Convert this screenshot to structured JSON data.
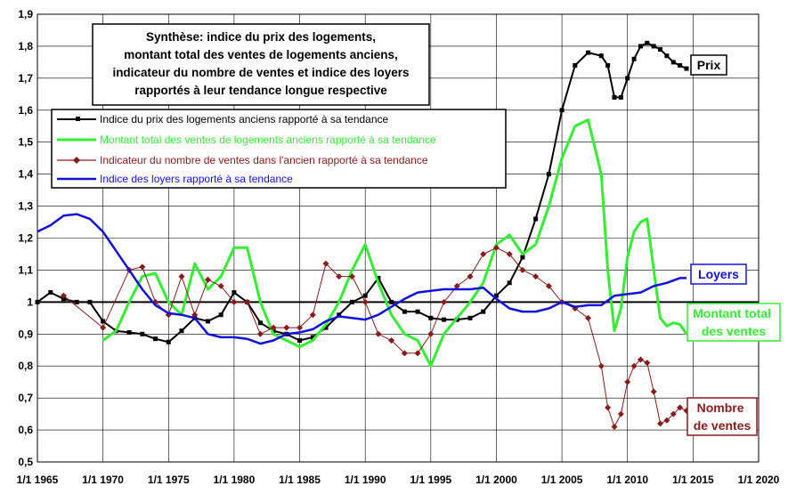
{
  "chart_data": {
    "type": "line",
    "title_lines": [
      "Synthèse: indice du prix des logements,",
      "montant total des ventes de logements anciens,",
      "indicateur du nombre de ventes et indice des loyers",
      "rapportés à leur tendance longue respective"
    ],
    "xlim": [
      1965,
      2020
    ],
    "ylim": [
      0.5,
      1.9
    ],
    "x_tick_values": [
      1965,
      1970,
      1975,
      1980,
      1985,
      1990,
      1995,
      2000,
      2005,
      2010,
      2015,
      2020
    ],
    "x_tick_labels": [
      "1/1 1965",
      "1/1 1970",
      "1/1 1975",
      "1/1 1980",
      "1/1 1985",
      "1/1 1990",
      "1/1 1995",
      "1/1 2000",
      "1/1 2005",
      "1/1 2010",
      "1/1 2015",
      "1/1 2020"
    ],
    "y_tick_values": [
      0.5,
      0.6,
      0.7,
      0.8,
      0.9,
      1.0,
      1.1,
      1.2,
      1.3,
      1.4,
      1.5,
      1.6,
      1.7,
      1.8,
      1.9
    ],
    "y_tick_labels": [
      "0,5",
      "0,6",
      "0,7",
      "0,8",
      "0,9",
      "1",
      "1,1",
      "1,2",
      "1,3",
      "1,4",
      "1,5",
      "1,6",
      "1,7",
      "1,8",
      "1,9"
    ],
    "grid": true,
    "reference_line": 1.0,
    "legend_position": "top-left",
    "series": [
      {
        "name": "Indice du prix des logements anciens rapporté à sa tendance",
        "label": "Prix",
        "color": "#000000",
        "marker": "square",
        "points": [
          [
            1965,
            1.0
          ],
          [
            1966,
            1.03
          ],
          [
            1967,
            1.01
          ],
          [
            1968,
            1.0
          ],
          [
            1969,
            1.0
          ],
          [
            1970,
            0.94
          ],
          [
            1971,
            0.91
          ],
          [
            1972,
            0.905
          ],
          [
            1973,
            0.9
          ],
          [
            1974,
            0.885
          ],
          [
            1975,
            0.875
          ],
          [
            1976,
            0.91
          ],
          [
            1977,
            0.95
          ],
          [
            1978,
            0.94
          ],
          [
            1979,
            0.96
          ],
          [
            1980,
            1.03
          ],
          [
            1981,
            1.0
          ],
          [
            1982,
            0.935
          ],
          [
            1983,
            0.91
          ],
          [
            1984,
            0.9
          ],
          [
            1985,
            0.88
          ],
          [
            1986,
            0.89
          ],
          [
            1987,
            0.92
          ],
          [
            1988,
            0.96
          ],
          [
            1989,
            1.0
          ],
          [
            1990,
            1.02
          ],
          [
            1991,
            1.075
          ],
          [
            1992,
            1.0
          ],
          [
            1993,
            0.97
          ],
          [
            1994,
            0.97
          ],
          [
            1995,
            0.95
          ],
          [
            1996,
            0.945
          ],
          [
            1997,
            0.945
          ],
          [
            1998,
            0.95
          ],
          [
            1999,
            0.97
          ],
          [
            2000,
            1.02
          ],
          [
            2001,
            1.06
          ],
          [
            2002,
            1.14
          ],
          [
            2003,
            1.26
          ],
          [
            2004,
            1.4
          ],
          [
            2005,
            1.6
          ],
          [
            2006,
            1.74
          ],
          [
            2007,
            1.78
          ],
          [
            2008,
            1.77
          ],
          [
            2008.5,
            1.74
          ],
          [
            2009,
            1.64
          ],
          [
            2009.5,
            1.64
          ],
          [
            2010,
            1.7
          ],
          [
            2010.5,
            1.76
          ],
          [
            2011,
            1.8
          ],
          [
            2011.5,
            1.81
          ],
          [
            2012,
            1.8
          ],
          [
            2012.5,
            1.79
          ],
          [
            2013,
            1.77
          ],
          [
            2013.5,
            1.75
          ],
          [
            2014,
            1.74
          ],
          [
            2014.5,
            1.73
          ]
        ]
      },
      {
        "name": "Montant total des ventes de logements anciens rapporté à sa tendance",
        "label": "Montant total des ventes",
        "color": "#33ee33",
        "marker": "none",
        "points": [
          [
            1970,
            0.88
          ],
          [
            1971,
            0.91
          ],
          [
            1972,
            1.0
          ],
          [
            1973,
            1.08
          ],
          [
            1974,
            1.09
          ],
          [
            1975,
            1.0
          ],
          [
            1976,
            0.96
          ],
          [
            1977,
            1.12
          ],
          [
            1978,
            1.04
          ],
          [
            1979,
            1.08
          ],
          [
            1980,
            1.17
          ],
          [
            1981,
            1.17
          ],
          [
            1982,
            1.0
          ],
          [
            1983,
            0.9
          ],
          [
            1984,
            0.88
          ],
          [
            1985,
            0.86
          ],
          [
            1986,
            0.88
          ],
          [
            1987,
            0.93
          ],
          [
            1988,
            1.0
          ],
          [
            1989,
            1.1
          ],
          [
            1990,
            1.18
          ],
          [
            1991,
            1.06
          ],
          [
            1992,
            0.96
          ],
          [
            1993,
            0.9
          ],
          [
            1994,
            0.88
          ],
          [
            1995,
            0.8
          ],
          [
            1996,
            0.9
          ],
          [
            1997,
            0.95
          ],
          [
            1998,
            1.0
          ],
          [
            1999,
            1.06
          ],
          [
            2000,
            1.18
          ],
          [
            2001,
            1.21
          ],
          [
            2002,
            1.15
          ],
          [
            2003,
            1.18
          ],
          [
            2004,
            1.3
          ],
          [
            2005,
            1.45
          ],
          [
            2006,
            1.55
          ],
          [
            2007,
            1.57
          ],
          [
            2008,
            1.4
          ],
          [
            2008.5,
            1.1
          ],
          [
            2009,
            0.91
          ],
          [
            2009.5,
            0.98
          ],
          [
            2010,
            1.14
          ],
          [
            2010.5,
            1.22
          ],
          [
            2011,
            1.25
          ],
          [
            2011.5,
            1.26
          ],
          [
            2012,
            1.1
          ],
          [
            2012.5,
            0.95
          ],
          [
            2013,
            0.925
          ],
          [
            2013.5,
            0.935
          ],
          [
            2014,
            0.93
          ],
          [
            2014.5,
            0.9
          ]
        ]
      },
      {
        "name": "Indicateur du nombre de ventes dans l'ancien rapporté à sa tendance",
        "label": "Nombre de ventes",
        "color": "#8b1a1a",
        "marker": "diamond",
        "points": [
          [
            1967,
            1.02
          ],
          [
            1970,
            0.92
          ],
          [
            1972,
            1.1
          ],
          [
            1973,
            1.11
          ],
          [
            1974,
            1.0
          ],
          [
            1975,
            0.96
          ],
          [
            1976,
            1.08
          ],
          [
            1977,
            0.96
          ],
          [
            1978,
            1.07
          ],
          [
            1979,
            1.05
          ],
          [
            1980,
            1.0
          ],
          [
            1981,
            1.0
          ],
          [
            1982,
            0.9
          ],
          [
            1983,
            0.92
          ],
          [
            1984,
            0.92
          ],
          [
            1985,
            0.92
          ],
          [
            1986,
            0.96
          ],
          [
            1987,
            1.12
          ],
          [
            1988,
            1.08
          ],
          [
            1989,
            1.08
          ],
          [
            1990,
            1.0
          ],
          [
            1991,
            0.9
          ],
          [
            1992,
            0.88
          ],
          [
            1993,
            0.84
          ],
          [
            1994,
            0.84
          ],
          [
            1995,
            0.9
          ],
          [
            1996,
            1.0
          ],
          [
            1997,
            1.05
          ],
          [
            1998,
            1.08
          ],
          [
            1999,
            1.15
          ],
          [
            2000,
            1.17
          ],
          [
            2001,
            1.15
          ],
          [
            2002,
            1.1
          ],
          [
            2003,
            1.08
          ],
          [
            2004,
            1.05
          ],
          [
            2005,
            1.0
          ],
          [
            2006,
            0.98
          ],
          [
            2007,
            0.95
          ],
          [
            2008,
            0.8
          ],
          [
            2008.5,
            0.67
          ],
          [
            2009,
            0.61
          ],
          [
            2009.5,
            0.65
          ],
          [
            2010,
            0.75
          ],
          [
            2010.5,
            0.8
          ],
          [
            2011,
            0.82
          ],
          [
            2011.5,
            0.81
          ],
          [
            2012,
            0.72
          ],
          [
            2012.5,
            0.62
          ],
          [
            2013,
            0.63
          ],
          [
            2013.5,
            0.65
          ],
          [
            2014,
            0.67
          ],
          [
            2014.5,
            0.66
          ]
        ]
      },
      {
        "name": "Indice des loyers rapporté à sa tendance",
        "label": "Loyers",
        "color": "#1111dd",
        "marker": "none",
        "points": [
          [
            1965,
            1.22
          ],
          [
            1966,
            1.24
          ],
          [
            1967,
            1.27
          ],
          [
            1968,
            1.275
          ],
          [
            1969,
            1.26
          ],
          [
            1970,
            1.22
          ],
          [
            1971,
            1.16
          ],
          [
            1972,
            1.1
          ],
          [
            1973,
            1.04
          ],
          [
            1974,
            0.99
          ],
          [
            1975,
            0.965
          ],
          [
            1976,
            0.96
          ],
          [
            1977,
            0.95
          ],
          [
            1978,
            0.9
          ],
          [
            1979,
            0.89
          ],
          [
            1980,
            0.89
          ],
          [
            1981,
            0.885
          ],
          [
            1982,
            0.87
          ],
          [
            1983,
            0.88
          ],
          [
            1984,
            0.9
          ],
          [
            1985,
            0.905
          ],
          [
            1986,
            0.915
          ],
          [
            1987,
            0.94
          ],
          [
            1988,
            0.955
          ],
          [
            1989,
            0.95
          ],
          [
            1990,
            0.945
          ],
          [
            1991,
            0.96
          ],
          [
            1992,
            0.985
          ],
          [
            1993,
            1.01
          ],
          [
            1994,
            1.03
          ],
          [
            1995,
            1.035
          ],
          [
            1996,
            1.04
          ],
          [
            1997,
            1.04
          ],
          [
            1998,
            1.04
          ],
          [
            1999,
            1.045
          ],
          [
            2000,
            1.01
          ],
          [
            2001,
            0.98
          ],
          [
            2002,
            0.97
          ],
          [
            2003,
            0.97
          ],
          [
            2004,
            0.98
          ],
          [
            2005,
            1.0
          ],
          [
            2006,
            0.985
          ],
          [
            2007,
            0.99
          ],
          [
            2008,
            0.99
          ],
          [
            2009,
            1.02
          ],
          [
            2010,
            1.025
          ],
          [
            2011,
            1.03
          ],
          [
            2012,
            1.05
          ],
          [
            2013,
            1.06
          ],
          [
            2014,
            1.075
          ],
          [
            2014.5,
            1.075
          ]
        ]
      }
    ]
  }
}
